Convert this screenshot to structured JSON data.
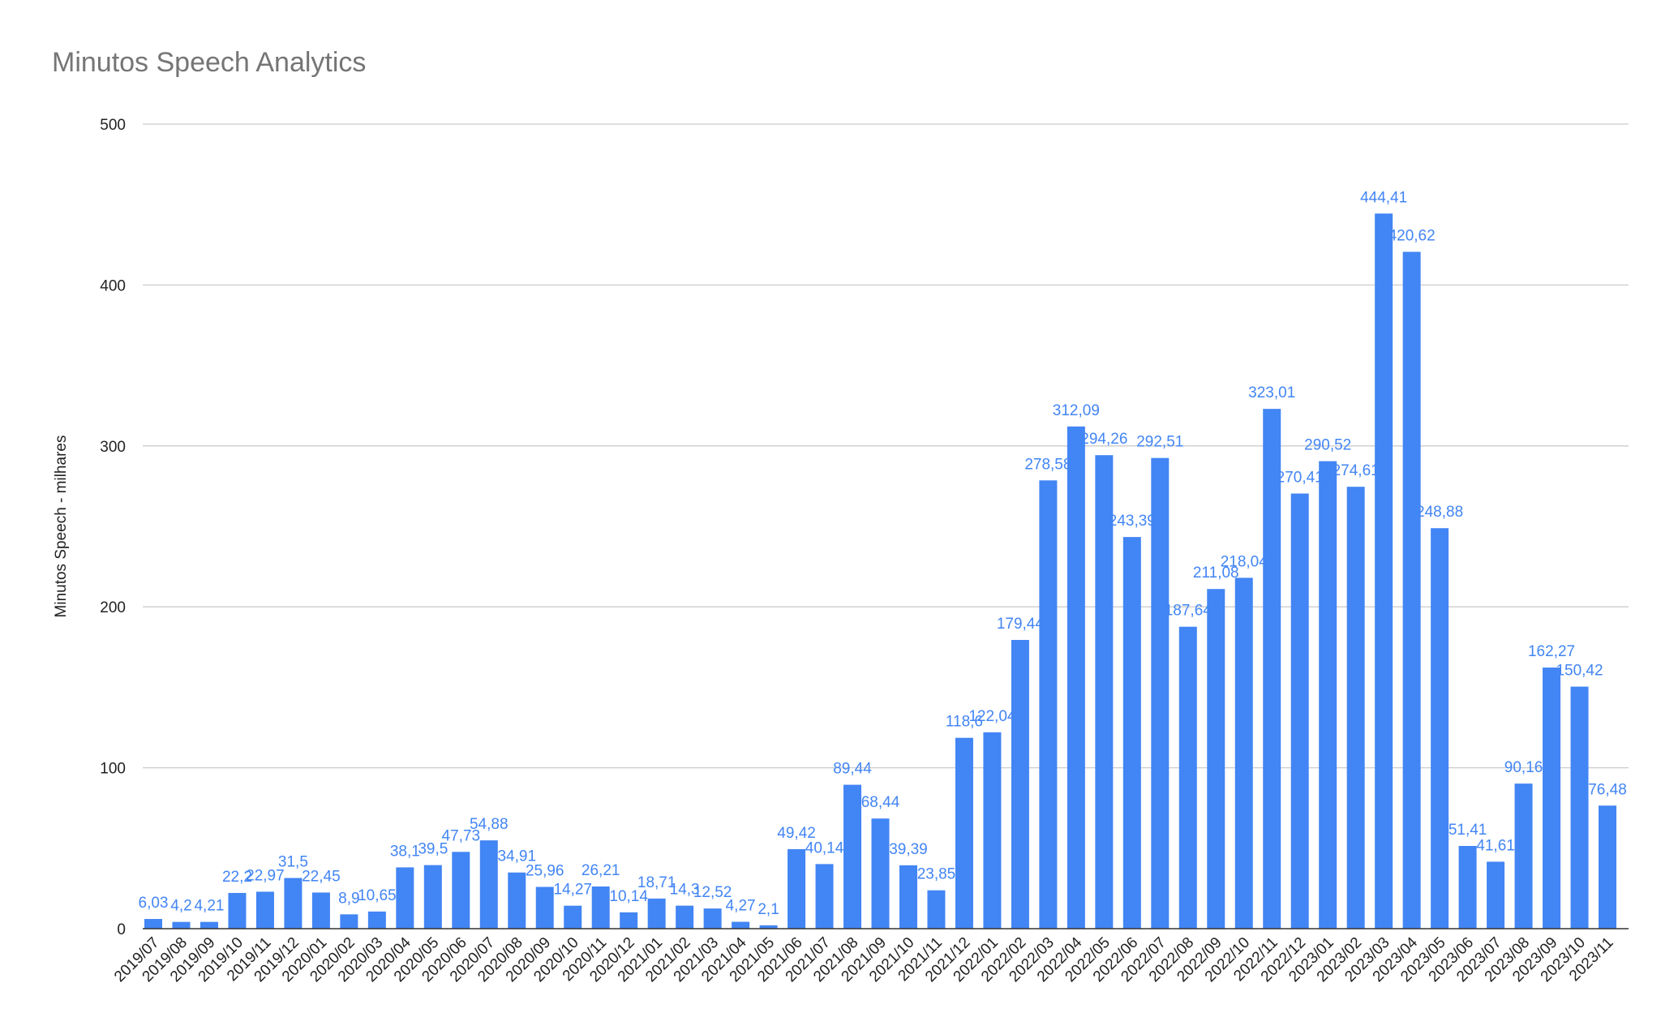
{
  "chart_data": {
    "type": "bar",
    "title": "Minutos Speech Analytics",
    "xlabel": "",
    "ylabel": "Minutos Speech - milhares",
    "ylim": [
      0,
      500
    ],
    "yticks": [
      0,
      100,
      200,
      300,
      400,
      500
    ],
    "grid": true,
    "legend": "none",
    "bar_color": "#4285f4",
    "label_color": "#4285f4",
    "categories": [
      "2019/07",
      "2019/08",
      "2019/09",
      "2019/10",
      "2019/11",
      "2019/12",
      "2020/01",
      "2020/02",
      "2020/03",
      "2020/04",
      "2020/05",
      "2020/06",
      "2020/07",
      "2020/08",
      "2020/09",
      "2020/10",
      "2020/11",
      "2020/12",
      "2021/01",
      "2021/02",
      "2021/03",
      "2021/04",
      "2021/05",
      "2021/06",
      "2021/07",
      "2021/08",
      "2021/09",
      "2021/10",
      "2021/11",
      "2021/12",
      "2022/01",
      "2022/02",
      "2022/03",
      "2022/04",
      "2022/05",
      "2022/06",
      "2022/07",
      "2022/08",
      "2022/09",
      "2022/10",
      "2022/11",
      "2022/12",
      "2023/01",
      "2023/02",
      "2023/03",
      "2023/04",
      "2023/05",
      "2023/06",
      "2023/07",
      "2023/08",
      "2023/09",
      "2023/10",
      "2023/11"
    ],
    "values": [
      6.03,
      4.2,
      4.21,
      22.2,
      22.97,
      31.5,
      22.45,
      8.9,
      10.65,
      38.1,
      39.5,
      47.73,
      54.88,
      34.91,
      25.96,
      14.27,
      26.21,
      10.14,
      18.71,
      14.3,
      12.52,
      4.27,
      2.1,
      49.42,
      40.14,
      89.44,
      68.44,
      39.39,
      23.85,
      118.6,
      122.04,
      179.44,
      278.58,
      312.09,
      294.26,
      243.39,
      292.51,
      187.64,
      211.08,
      218.04,
      323.01,
      270.41,
      290.52,
      274.61,
      444.41,
      420.62,
      248.88,
      51.41,
      41.61,
      90.16,
      162.27,
      150.42,
      76.48
    ],
    "data_labels": [
      "6,03",
      "4,2",
      "4,21",
      "22,2",
      "22,97",
      "31,5",
      "22,45",
      "8,9",
      "10,65",
      "38,1",
      "39,5",
      "47,73",
      "54,88",
      "34,91",
      "25,96",
      "14,27",
      "26,21",
      "10,14",
      "18,71",
      "14,3",
      "12,52",
      "4,27",
      "2,1",
      "49,42",
      "40,14",
      "89,44",
      "68,44",
      "39,39",
      "23,85",
      "118,6",
      "122,04",
      "179,44",
      "278,58",
      "312,09",
      "294,26",
      "243,39",
      "292,51",
      "187,64",
      "211,08",
      "218,04",
      "323,01",
      "270,41",
      "290,52",
      "274,61",
      "444,41",
      "420,62",
      "248,88",
      "51,41",
      "41,61",
      "90,16",
      "162,27",
      "150,42",
      "76,48"
    ]
  }
}
